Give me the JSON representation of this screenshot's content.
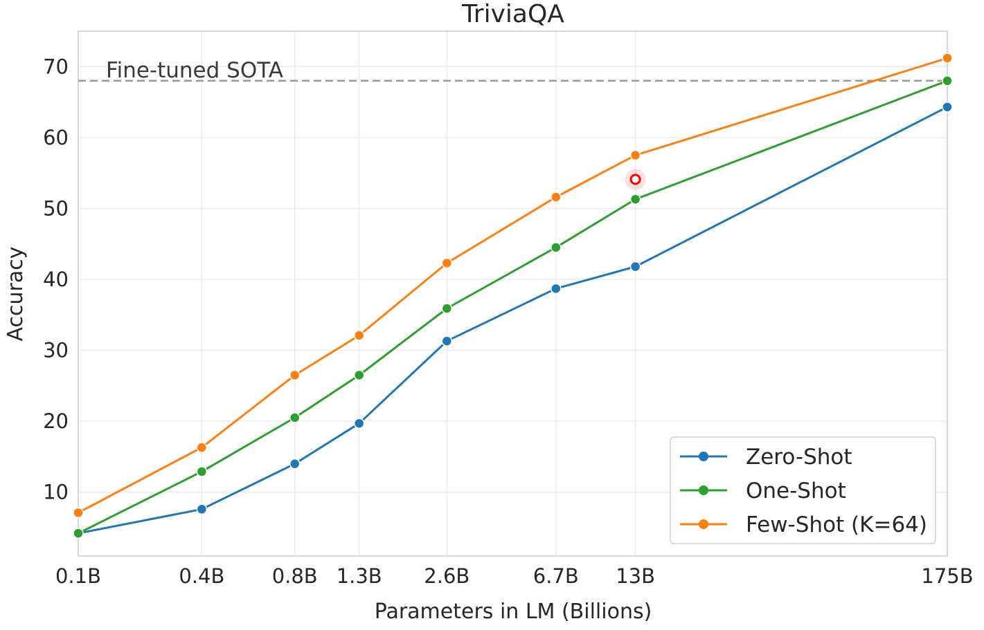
{
  "chart_data": {
    "type": "line",
    "title": "TriviaQA",
    "xlabel": "Parameters in LM (Billions)",
    "ylabel": "Accuracy",
    "x_scale": "log",
    "categories": [
      "0.1B",
      "0.4B",
      "0.8B",
      "1.3B",
      "2.6B",
      "6.7B",
      "13B",
      "175B"
    ],
    "x": [
      0.125,
      0.35,
      0.76,
      1.3,
      2.7,
      6.7,
      13,
      175
    ],
    "ylim": [
      1,
      75
    ],
    "xlim": [
      0.125,
      175
    ],
    "yticks": [
      10,
      20,
      30,
      40,
      50,
      60,
      70
    ],
    "grid": true,
    "legend_position": "bottom-right",
    "series": [
      {
        "name": "Zero-Shot",
        "color": "#1f77b4",
        "values": [
          4.2,
          7.6,
          14.0,
          19.7,
          31.3,
          38.7,
          41.8,
          64.3
        ]
      },
      {
        "name": "One-Shot",
        "color": "#2ca02c",
        "values": [
          4.2,
          12.9,
          20.5,
          26.5,
          35.9,
          44.5,
          51.3,
          68.0
        ]
      },
      {
        "name": "Few-Shot (K=64)",
        "color": "#ff7f0e",
        "values": [
          7.1,
          16.3,
          26.5,
          32.1,
          42.3,
          51.6,
          57.5,
          71.2
        ]
      }
    ],
    "reference_line": {
      "label": "Fine-tuned SOTA",
      "value": 68.0,
      "color": "#999999"
    },
    "cursor_marker": {
      "x": 13,
      "y": 54.1,
      "color": "#ff0000"
    }
  }
}
